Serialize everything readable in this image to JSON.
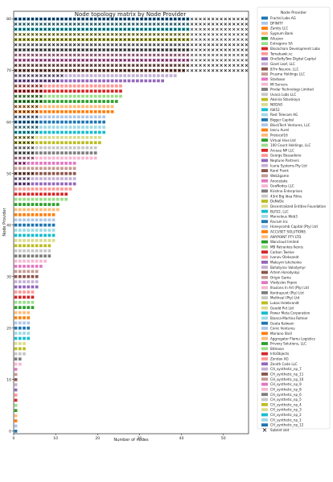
{
  "chart_data": {
    "type": "scatter",
    "title": "Node topology matrix by Node Provider",
    "xlabel": "Number of nodes",
    "ylabel": "Node Provider",
    "xlim": [
      0,
      56
    ],
    "ylim": [
      -0.5,
      81.5
    ],
    "xticks": [
      "0",
      "10",
      "20",
      "30",
      "40",
      "50"
    ],
    "yticks": [
      "0",
      "10",
      "20",
      "30",
      "40",
      "50",
      "60",
      "70",
      "80"
    ],
    "grid": false,
    "legend_title": "Node Provider",
    "legend_position": "outside-right",
    "subnet_marker_label": "Subnet slot",
    "providers": [
      {
        "name": "Fractal Labs AG",
        "color": "#1f77b4",
        "nodes": 1,
        "subnet": 0
      },
      {
        "name": "DFINITY",
        "color": "#aec7e8",
        "nodes": 1,
        "subnet": 0
      },
      {
        "name": "Zarety LLC",
        "color": "#ff7f0e",
        "nodes": 1,
        "subnet": 0
      },
      {
        "name": "Sygnum Bank",
        "color": "#ffbb78",
        "nodes": 1,
        "subnet": 0
      },
      {
        "name": "Allusion",
        "color": "#2ca02c",
        "nodes": 1,
        "subnet": 0
      },
      {
        "name": "Extragone SA",
        "color": "#98df8a",
        "nodes": 1,
        "subnet": 0
      },
      {
        "name": "Blockchain Development Labs",
        "color": "#d62728",
        "nodes": 1,
        "subnet": 0
      },
      {
        "name": "Tomahawk.vc",
        "color": "#ff9896",
        "nodes": 1,
        "subnet": 0
      },
      {
        "name": "OneSoftyTwo Digital Capital",
        "color": "#9467bd",
        "nodes": 1,
        "subnet": 0
      },
      {
        "name": "Giant Leaf, LLC",
        "color": "#c5b0d5",
        "nodes": 1,
        "subnet": 0
      },
      {
        "name": "87m Neuron, LLC",
        "color": "#8c564b",
        "nodes": 1,
        "subnet": 0
      },
      {
        "name": "Prusma Holdings LLC",
        "color": "#c49c94",
        "nodes": 1,
        "subnet": 0
      },
      {
        "name": "Starbase",
        "color": "#e377c2",
        "nodes": 1,
        "subnet": 0
      },
      {
        "name": "MI Servers",
        "color": "#f7b6d2",
        "nodes": 2,
        "subnet": 0
      },
      {
        "name": "Pindar Technology Limited",
        "color": "#7f7f7f",
        "nodes": 2,
        "subnet": 0
      },
      {
        "name": "Uvaca Labs LLC",
        "color": "#c7c7c7",
        "nodes": 3,
        "subnet": 0
      },
      {
        "name": "Aksinia Stavskaya",
        "color": "#bcbd22",
        "nodes": 3,
        "subnet": 0
      },
      {
        "name": "NODAO",
        "color": "#dbdb8d",
        "nodes": 3,
        "subnet": 0
      },
      {
        "name": "ISK52",
        "color": "#17becf",
        "nodes": 4,
        "subnet": 0
      },
      {
        "name": "Rest Telecom AG",
        "color": "#9edae5",
        "nodes": 4,
        "subnet": 0
      },
      {
        "name": "Bigger Capital",
        "color": "#1f77b4",
        "nodes": 4,
        "subnet": 0
      },
      {
        "name": "BlockTech Ventures, LLC",
        "color": "#aec7e8",
        "nodes": 4,
        "subnet": 0
      },
      {
        "name": "Iancu Aurel",
        "color": "#ff7f0e",
        "nodes": 4,
        "subnet": 0
      },
      {
        "name": "Protocol16",
        "color": "#ffbb78",
        "nodes": 4,
        "subnet": 0
      },
      {
        "name": "Virtual Hive Ltd",
        "color": "#2ca02c",
        "nodes": 5,
        "subnet": 0
      },
      {
        "name": "100 Count Holdings, LLC",
        "color": "#98df8a",
        "nodes": 5,
        "subnet": 0
      },
      {
        "name": "Arceau NP LLC",
        "color": "#d62728",
        "nodes": 5,
        "subnet": 0
      },
      {
        "name": "George Bassadone",
        "color": "#ff9896",
        "nodes": 5,
        "subnet": 0
      },
      {
        "name": "Neptune Partners",
        "color": "#9467bd",
        "nodes": 6,
        "subnet": 0
      },
      {
        "name": "Icaria Systems Pty Ltd",
        "color": "#c5b0d5",
        "nodes": 6,
        "subnet": 0
      },
      {
        "name": "Karel Frank",
        "color": "#8c564b",
        "nodes": 6,
        "subnet": 0
      },
      {
        "name": "Web3game",
        "color": "#c49c94",
        "nodes": 6,
        "subnet": 0
      },
      {
        "name": "Anonstake",
        "color": "#e377c2",
        "nodes": 7,
        "subnet": 0
      },
      {
        "name": "GeoNodes LLC",
        "color": "#f7b6d2",
        "nodes": 8,
        "subnet": 0
      },
      {
        "name": "Krishna Enterprises",
        "color": "#7f7f7f",
        "nodes": 9,
        "subnet": 0
      },
      {
        "name": "43rd Big Idea Films",
        "color": "#c7c7c7",
        "nodes": 9,
        "subnet": 0
      },
      {
        "name": "DeNoDe",
        "color": "#bcbd22",
        "nodes": 9,
        "subnet": 0
      },
      {
        "name": "Decentralized Entities Foundation",
        "color": "#dbdb8d",
        "nodes": 10,
        "subnet": 0
      },
      {
        "name": "BLP22, LLC",
        "color": "#17becf",
        "nodes": 10,
        "subnet": 0
      },
      {
        "name": "Marvelous Web3",
        "color": "#9edae5",
        "nodes": 10,
        "subnet": 0
      },
      {
        "name": "Rivram Inc",
        "color": "#1f77b4",
        "nodes": 10,
        "subnet": 0
      },
      {
        "name": "Honeycomb Capital (Pty) Ltd",
        "color": "#aec7e8",
        "nodes": 10,
        "subnet": 0
      },
      {
        "name": "ACCUSET SOLUTIONS",
        "color": "#ff7f0e",
        "nodes": 10,
        "subnet": 0
      },
      {
        "name": "ANYPOINT PTY LTD",
        "color": "#ffbb78",
        "nodes": 11,
        "subnet": 0
      },
      {
        "name": "Wancloud limited",
        "color": "#2ca02c",
        "nodes": 11,
        "subnet": 0
      },
      {
        "name": "MB Patrankos Ikonis",
        "color": "#98df8a",
        "nodes": 13,
        "subnet": 0
      },
      {
        "name": "Carbon Twelve",
        "color": "#d62728",
        "nodes": 13,
        "subnet": 0
      },
      {
        "name": "Ivanov Oleksandr",
        "color": "#ff9896",
        "nodes": 14,
        "subnet": 0
      },
      {
        "name": "Maksym Ishchenko",
        "color": "#9467bd",
        "nodes": 15,
        "subnet": 4
      },
      {
        "name": "Bohatyrov Volodymyr",
        "color": "#c5b0d5",
        "nodes": 15,
        "subnet": 4
      },
      {
        "name": "Artem Horodyskyi",
        "color": "#8c564b",
        "nodes": 15,
        "subnet": 5
      },
      {
        "name": "Origin Game",
        "color": "#c49c94",
        "nodes": 15,
        "subnet": 0
      },
      {
        "name": "Vladyslav Popov",
        "color": "#e377c2",
        "nodes": 15,
        "subnet": 3
      },
      {
        "name": "Illusions In Art (Pty) Ltd",
        "color": "#f7b6d2",
        "nodes": 20,
        "subnet": 5
      },
      {
        "name": "Kontrapunt (Pty) Ltd",
        "color": "#7f7f7f",
        "nodes": 20,
        "subnet": 5
      },
      {
        "name": "Meitheal (Pty) Ltd",
        "color": "#c7c7c7",
        "nodes": 20,
        "subnet": 5
      },
      {
        "name": "Lukas Helebrandt",
        "color": "#bcbd22",
        "nodes": 21,
        "subnet": 5
      },
      {
        "name": "Geodd Pvt Ltd",
        "color": "#dbdb8d",
        "nodes": 21,
        "subnet": 5
      },
      {
        "name": "Power Meta Corporation",
        "color": "#17becf",
        "nodes": 22,
        "subnet": 6
      },
      {
        "name": "Bianca-Martina Rohner",
        "color": "#9edae5",
        "nodes": 22,
        "subnet": 6
      },
      {
        "name": "Geeta Kalwani",
        "color": "#1f77b4",
        "nodes": 22,
        "subnet": 6
      },
      {
        "name": "Conic Ventures",
        "color": "#aec7e8",
        "nodes": 22,
        "subnet": 6
      },
      {
        "name": "Mariano Stoll",
        "color": "#ff7f0e",
        "nodes": 24,
        "subnet": 6
      },
      {
        "name": "Aggregator Flamu Logistics",
        "color": "#ffbb78",
        "nodes": 24,
        "subnet": 6
      },
      {
        "name": "Privoxy Solutions, LLC",
        "color": "#2ca02c",
        "nodes": 25,
        "subnet": 7
      },
      {
        "name": "Bitmoon",
        "color": "#98df8a",
        "nodes": 26,
        "subnet": 7
      },
      {
        "name": "InfoObjects",
        "color": "#d62728",
        "nodes": 26,
        "subnet": 7
      },
      {
        "name": "Zondax AG",
        "color": "#ff9896",
        "nodes": 26,
        "subnet": 7
      },
      {
        "name": "Zenith Code LLC",
        "color": "#9467bd",
        "nodes": 36,
        "subnet": 11
      },
      {
        "name": "CH_synthetic_np_7",
        "color": "#c5b0d5",
        "nodes": 39,
        "subnet": 12
      },
      {
        "name": "CH_synthetic_np_11",
        "color": "#8c564b",
        "nodes": 41,
        "subnet": 56
      },
      {
        "name": "CH_synthetic_np_10",
        "color": "#c49c94",
        "nodes": 42,
        "subnet": 56
      },
      {
        "name": "CH_synthetic_np_9",
        "color": "#e377c2",
        "nodes": 42,
        "subnet": 56
      },
      {
        "name": "CH_synthetic_np_8",
        "color": "#f7b6d2",
        "nodes": 42,
        "subnet": 56
      },
      {
        "name": "CH_synthetic_np_6",
        "color": "#7f7f7f",
        "nodes": 42,
        "subnet": 56
      },
      {
        "name": "CH_synthetic_np_5",
        "color": "#c7c7c7",
        "nodes": 42,
        "subnet": 56
      },
      {
        "name": "CH_synthetic_np_4",
        "color": "#bcbd22",
        "nodes": 42,
        "subnet": 56
      },
      {
        "name": "CH_synthetic_np_3",
        "color": "#dbdb8d",
        "nodes": 42,
        "subnet": 56
      },
      {
        "name": "CH_synthetic_np_2",
        "color": "#17becf",
        "nodes": 42,
        "subnet": 56
      },
      {
        "name": "CH_synthetic_np_1",
        "color": "#9edae5",
        "nodes": 42,
        "subnet": 56
      },
      {
        "name": "CH_synthetic_np_12",
        "color": "#1f77b4",
        "nodes": 42,
        "subnet": 56
      }
    ]
  }
}
